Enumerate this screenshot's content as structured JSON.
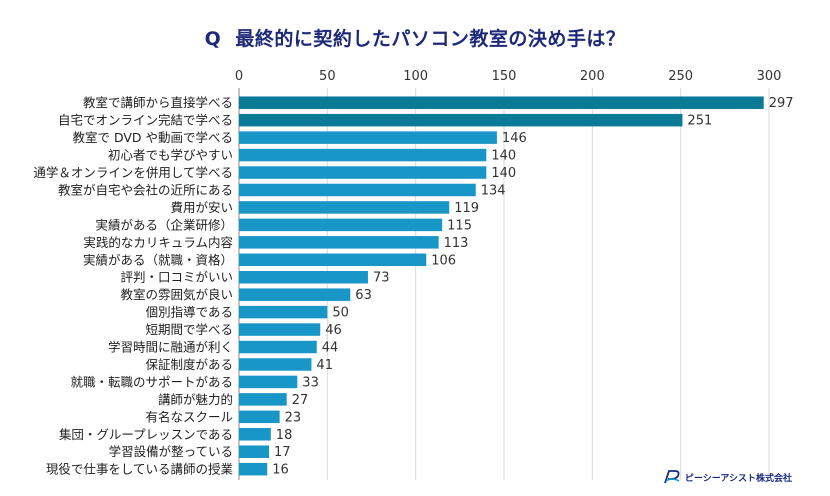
{
  "chart_data": {
    "type": "bar",
    "orientation": "horizontal",
    "title_prefix": "Q",
    "title": "最終的に契約したパソコン教室の決め手は？",
    "xlim": [
      0,
      300
    ],
    "xticks": [
      0,
      50,
      100,
      150,
      200,
      250,
      300
    ],
    "categories": [
      "教室で講師から直接学べる",
      "自宅でオンライン完結で学べる",
      "教室で DVD や動画で学べる",
      "初心者でも学びやすい",
      "通学＆オンラインを併用して学べる",
      "教室が自宅や会社の近所にある",
      "費用が安い",
      "実績がある（企業研修）",
      "実践的なカリキュラム内容",
      "実績がある（就職・資格）",
      "評判・口コミがいい",
      "教室の雰囲気が良い",
      "個別指導である",
      "短期間で学べる",
      "学習時間に融通が利く",
      "保証制度がある",
      "就職・転職のサポートがある",
      "講師が魅力的",
      "有名なスクール",
      "集団・グループレッスンである",
      "学習設備が整っている",
      "現役で仕事をしている講師の授業"
    ],
    "values": [
      297,
      251,
      146,
      140,
      140,
      134,
      119,
      115,
      113,
      106,
      73,
      63,
      50,
      46,
      44,
      41,
      33,
      27,
      23,
      18,
      17,
      16
    ],
    "highlight_count": 2,
    "colors": {
      "highlight": "#0a7a96",
      "normal": "#1996c8",
      "grid": "#d9d9d9",
      "axis": "#888888"
    }
  },
  "logo": {
    "text": "ピーシーアシスト株式会社"
  }
}
